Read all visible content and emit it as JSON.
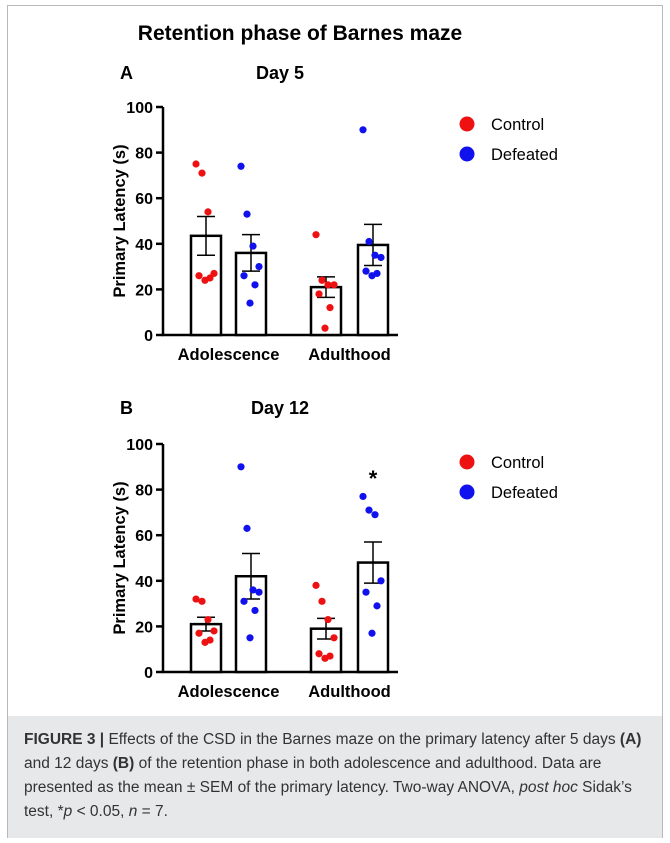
{
  "figure": {
    "title": "Retention phase of Barnes maze",
    "legend": {
      "control": "Control",
      "defeated": "Defeated"
    },
    "colors": {
      "control": "#ee1111",
      "defeated": "#1111ee",
      "axis": "#000000"
    }
  },
  "chart_data": [
    {
      "panel": "A",
      "type": "bar",
      "title": "Day 5",
      "xlabel": "",
      "ylabel": "Primary Latency (s)",
      "ylim": [
        0,
        100
      ],
      "yticks": [
        0,
        20,
        40,
        60,
        80,
        100
      ],
      "categories": [
        "Adolescence",
        "Adulthood"
      ],
      "series": [
        {
          "name": "Control",
          "values": [
            43.5,
            21
          ],
          "sem": [
            8.5,
            4.5
          ],
          "points": [
            [
              75,
              71,
              54,
              27,
              26,
              25,
              24
            ],
            [
              44,
              24,
              22,
              22,
              18,
              12,
              3
            ]
          ]
        },
        {
          "name": "Defeated",
          "values": [
            36,
            39.5
          ],
          "sem": [
            8,
            9
          ],
          "points": [
            [
              74,
              53,
              39,
              30,
              26,
              22,
              14
            ],
            [
              90,
              41,
              35,
              34,
              28,
              27,
              26
            ]
          ]
        }
      ],
      "annotations": []
    },
    {
      "panel": "B",
      "type": "bar",
      "title": "Day 12",
      "xlabel": "",
      "ylabel": "Primary Latency (s)",
      "ylim": [
        0,
        100
      ],
      "yticks": [
        0,
        20,
        40,
        60,
        80,
        100
      ],
      "categories": [
        "Adolescence",
        "Adulthood"
      ],
      "series": [
        {
          "name": "Control",
          "values": [
            21,
            19
          ],
          "sem": [
            3,
            4.5
          ],
          "points": [
            [
              32,
              31,
              23,
              18,
              17,
              14,
              13
            ],
            [
              38,
              31,
              23,
              15,
              8,
              7,
              6
            ]
          ]
        },
        {
          "name": "Defeated",
          "values": [
            42,
            48
          ],
          "sem": [
            10,
            9
          ],
          "points": [
            [
              90,
              63,
              36,
              35,
              31,
              27,
              15
            ],
            [
              77,
              71,
              69,
              40,
              35,
              29,
              17
            ]
          ]
        }
      ],
      "annotations": [
        {
          "text": "*",
          "category": "Adulthood",
          "series": "Defeated",
          "y": 86
        }
      ]
    }
  ],
  "caption": {
    "label": "FIGURE 3 |",
    "text_1": " Effects of the CSD in the Barnes maze on the primary latency after 5 days ",
    "a": "(A)",
    "text_2": " and 12 days ",
    "b": "(B)",
    "text_3": " of the retention phase in both adolescence and adulthood. Data are presented as the mean ± SEM of the primary latency. Two-way ANOVA, ",
    "post_hoc": "post hoc",
    "text_4": " Sidak’s test, *",
    "p": "p",
    "text_5": " < 0.05, ",
    "n": "n",
    "text_6": " = 7."
  }
}
